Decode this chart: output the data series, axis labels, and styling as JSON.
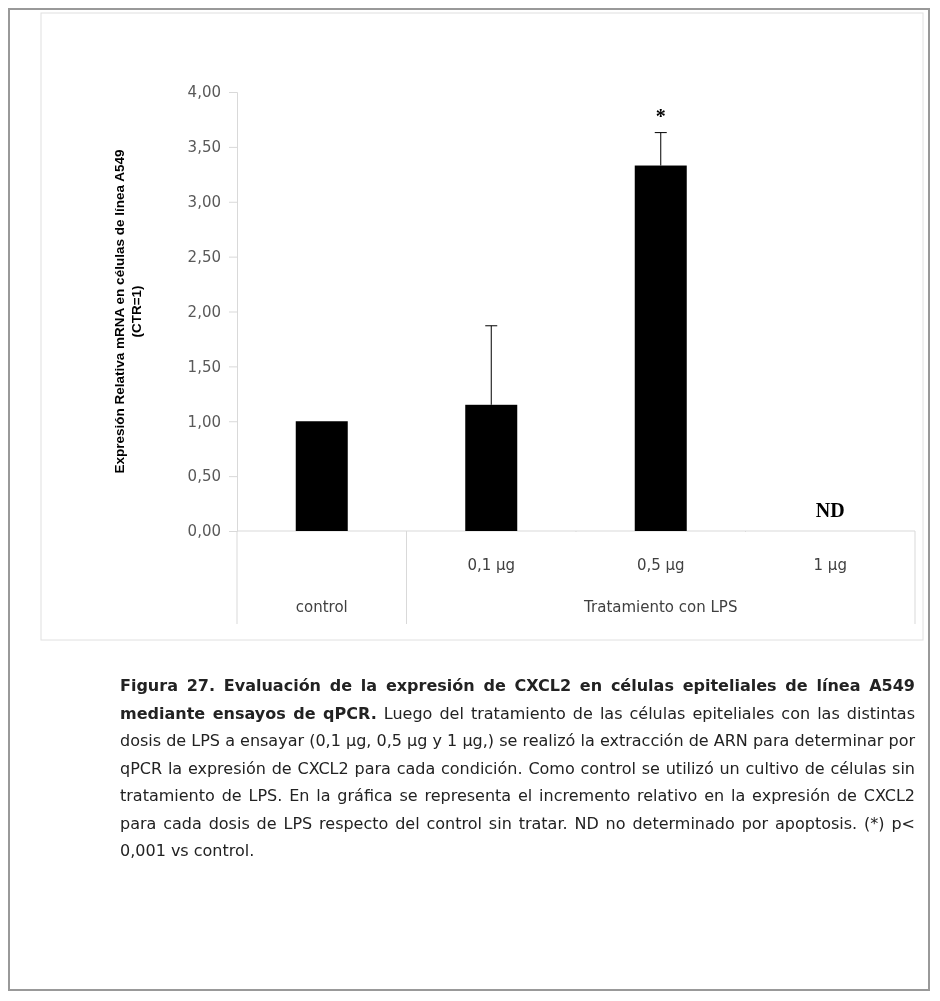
{
  "chart_data": {
    "type": "bar",
    "ylabel": "Expresión Relativa mRNA en células de línea A549\n(CTR=1)",
    "categories": [
      null,
      "0,1 µg",
      "0,5 µg",
      "1 µg"
    ],
    "values": [
      1.0,
      1.15,
      3.33,
      null
    ],
    "errors": [
      null,
      0.72,
      0.3,
      null
    ],
    "color": "#000000",
    "ylim": [
      0,
      4
    ],
    "yticks": [
      {
        "value": 0,
        "label": "0,00"
      },
      {
        "value": 0.5,
        "label": "0,50"
      },
      {
        "value": 1,
        "label": "1,00"
      },
      {
        "value": 1.5,
        "label": "1,50"
      },
      {
        "value": 2,
        "label": "2,00"
      },
      {
        "value": 2.5,
        "label": "2,50"
      },
      {
        "value": 3,
        "label": "3,00"
      },
      {
        "value": 3.5,
        "label": "3,50"
      },
      {
        "value": 4,
        "label": "4,00"
      }
    ],
    "grid": false,
    "annotations": [
      {
        "text": "*",
        "x": "0,5 µg",
        "y": 3.63
      },
      "ND",
      "control",
      "Tratamiento con LPS",
      "Figura 27. Evaluación de la expresión de CXCL2 en células epiteliales de línea A549 mediante ensayos de qPCR.",
      "Luego del tratamiento de las células epiteliales con las distintas dosis de LPS a ensayar (0,1 µg, 0,5 µg y 1 µg,) se realizó la extracción de ARN para determinar por qPCR la expresión de CXCL2 para cada condición. Como control se utilizó un cultivo de células sin tratamiento de LPS. En la gráfica se representa el incremento relativo en la expresión de CXCL2 para cada dosis de LPS respecto del control sin tratar. ND no determinado por apoptosis. (*) p< 0,001 vs control."
    ]
  }
}
